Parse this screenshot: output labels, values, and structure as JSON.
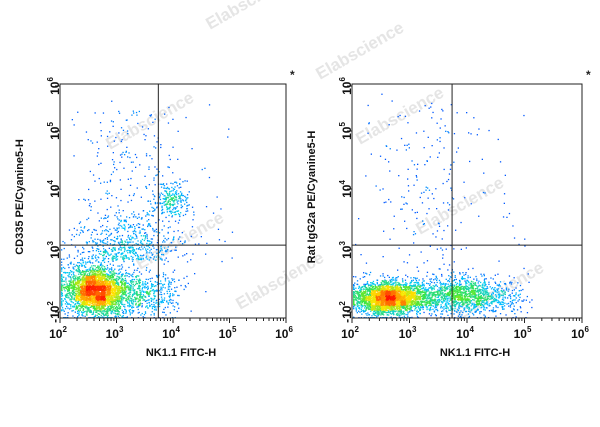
{
  "watermark_text": "Elabscience",
  "chart_data": [
    {
      "type": "scatter",
      "subtype": "flow-cytometry-density",
      "xlabel": "NK1.1 FITC-H",
      "ylabel": "CD335 PE/Cyanine5-H",
      "xscale": "log",
      "xlim": [
        100,
        1000000
      ],
      "x_ticks": [
        {
          "label": "10",
          "exp": "2",
          "value": 100
        },
        {
          "label": "10",
          "exp": "3",
          "value": 1000
        },
        {
          "label": "10",
          "exp": "4",
          "value": 10000
        },
        {
          "label": "10",
          "exp": "5",
          "value": 100000
        },
        {
          "label": "10",
          "exp": "6",
          "value": 1000000
        }
      ],
      "yscale": "biexponential",
      "y_ticks": [
        {
          "label": "-10",
          "exp": "2",
          "value": -100
        },
        {
          "label": "10",
          "exp": "3",
          "value": 1000
        },
        {
          "label": "10",
          "exp": "4",
          "value": 10000
        },
        {
          "label": "10",
          "exp": "5",
          "value": 100000
        },
        {
          "label": "10",
          "exp": "6",
          "value": 1000000
        }
      ],
      "gate": {
        "x": 5500,
        "y": 1200
      },
      "marker": "*",
      "populations": [
        {
          "name": "main",
          "x": 400,
          "y": 300,
          "color": "#ff2a00"
        },
        {
          "name": "nk",
          "x": 9000,
          "y": 7000,
          "color": "#0033ff"
        }
      ]
    },
    {
      "type": "scatter",
      "subtype": "flow-cytometry-density",
      "xlabel": "NK1.1 FITC-H",
      "ylabel": "Rat IgG2a PE/Cyanine5-H",
      "xscale": "log",
      "xlim": [
        100,
        1000000
      ],
      "x_ticks": [
        {
          "label": "10",
          "exp": "2",
          "value": 100
        },
        {
          "label": "10",
          "exp": "3",
          "value": 1000
        },
        {
          "label": "10",
          "exp": "4",
          "value": 10000
        },
        {
          "label": "10",
          "exp": "5",
          "value": 100000
        },
        {
          "label": "10",
          "exp": "6",
          "value": 1000000
        }
      ],
      "yscale": "biexponential",
      "y_ticks": [
        {
          "label": "-10",
          "exp": "2",
          "value": -100
        },
        {
          "label": "10",
          "exp": "3",
          "value": 1000
        },
        {
          "label": "10",
          "exp": "4",
          "value": 10000
        },
        {
          "label": "10",
          "exp": "5",
          "value": 100000
        },
        {
          "label": "10",
          "exp": "6",
          "value": 1000000
        }
      ],
      "gate": {
        "x": 5500,
        "y": 1200
      },
      "marker": "*",
      "populations": [
        {
          "name": "main",
          "x": 400,
          "y": 150,
          "color": "#ff2a00"
        },
        {
          "name": "nk-negative",
          "x": 8000,
          "y": 200,
          "color": "#0033ff"
        }
      ]
    }
  ]
}
